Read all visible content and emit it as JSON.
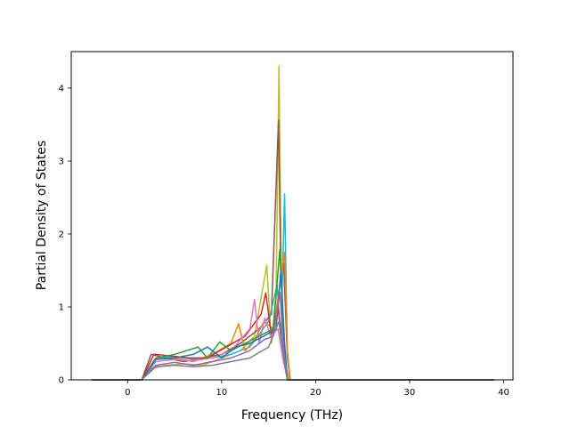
{
  "chart_data": {
    "type": "line",
    "title": "",
    "xlabel": "Frequency (THz)",
    "ylabel": "Partial Density of States",
    "xlim": [
      -6,
      41
    ],
    "ylim": [
      0,
      4.5
    ],
    "xticks": [
      0,
      10,
      20,
      30,
      40
    ],
    "yticks": [
      0,
      1,
      2,
      3,
      4
    ],
    "xtick_labels": [
      "0",
      "10",
      "20",
      "30",
      "40"
    ],
    "ytick_labels": [
      "0",
      "1",
      "2",
      "3",
      "4"
    ],
    "grid": false,
    "legend": "none",
    "series": [
      {
        "color": "#bcbd22",
        "values": [
          [
            -3.8,
            0
          ],
          [
            1.5,
            0
          ],
          [
            2.5,
            0.15
          ],
          [
            4,
            0.2
          ],
          [
            6,
            0.22
          ],
          [
            8,
            0.2
          ],
          [
            10,
            0.3
          ],
          [
            12,
            0.4
          ],
          [
            13.5,
            0.6
          ],
          [
            14.8,
            1.57
          ],
          [
            15.3,
            0.5
          ],
          [
            15.8,
            1.2
          ],
          [
            16.1,
            4.3
          ],
          [
            16.4,
            0.9
          ],
          [
            16.8,
            0.2
          ],
          [
            17.2,
            0
          ],
          [
            39,
            0
          ]
        ]
      },
      {
        "color": "#8c564b",
        "values": [
          [
            -3.8,
            0
          ],
          [
            1.5,
            0
          ],
          [
            2.5,
            0.35
          ],
          [
            4,
            0.3
          ],
          [
            6,
            0.25
          ],
          [
            8,
            0.3
          ],
          [
            10,
            0.35
          ],
          [
            12,
            0.5
          ],
          [
            14,
            0.7
          ],
          [
            15.3,
            0.9
          ],
          [
            16.05,
            3.56
          ],
          [
            16.3,
            1.4
          ],
          [
            16.6,
            1.6
          ],
          [
            17,
            0.3
          ],
          [
            17.3,
            0
          ],
          [
            39,
            0
          ]
        ]
      },
      {
        "color": "#17becf",
        "values": [
          [
            -3.8,
            0
          ],
          [
            1.5,
            0
          ],
          [
            3,
            0.3
          ],
          [
            5,
            0.32
          ],
          [
            7,
            0.28
          ],
          [
            9,
            0.3
          ],
          [
            11,
            0.35
          ],
          [
            13,
            0.45
          ],
          [
            15,
            0.8
          ],
          [
            15.9,
            1.3
          ],
          [
            16.3,
            0.5
          ],
          [
            16.7,
            2.55
          ],
          [
            17,
            0.3
          ],
          [
            17.3,
            0
          ],
          [
            39,
            0
          ]
        ]
      },
      {
        "color": "#ff7f0e",
        "values": [
          [
            -3.8,
            0
          ],
          [
            1.5,
            0
          ],
          [
            3,
            0.28
          ],
          [
            5,
            0.3
          ],
          [
            7,
            0.25
          ],
          [
            9,
            0.35
          ],
          [
            11,
            0.5
          ],
          [
            11.8,
            0.77
          ],
          [
            12.5,
            0.4
          ],
          [
            13.5,
            0.55
          ],
          [
            14.5,
            0.8
          ],
          [
            15.5,
            0.7
          ],
          [
            16.2,
            1.3
          ],
          [
            16.7,
            1.75
          ],
          [
            17,
            0.4
          ],
          [
            17.3,
            0
          ],
          [
            39,
            0
          ]
        ]
      },
      {
        "color": "#d62728",
        "values": [
          [
            -3.8,
            0
          ],
          [
            1.5,
            0
          ],
          [
            2.8,
            0.35
          ],
          [
            4.5,
            0.33
          ],
          [
            6.5,
            0.3
          ],
          [
            8.5,
            0.3
          ],
          [
            10.5,
            0.45
          ],
          [
            12.5,
            0.6
          ],
          [
            14.2,
            0.9
          ],
          [
            14.7,
            1.19
          ],
          [
            15.3,
            0.6
          ],
          [
            16,
            1.0
          ],
          [
            16.5,
            0.4
          ],
          [
            17,
            0
          ],
          [
            39,
            0
          ]
        ]
      },
      {
        "color": "#e377c2",
        "values": [
          [
            -3.8,
            0
          ],
          [
            1.5,
            0
          ],
          [
            3,
            0.25
          ],
          [
            5,
            0.28
          ],
          [
            7,
            0.26
          ],
          [
            9,
            0.3
          ],
          [
            11,
            0.4
          ],
          [
            13,
            0.7
          ],
          [
            13.5,
            1.1
          ],
          [
            14,
            0.5
          ],
          [
            14.6,
            0.85
          ],
          [
            15.2,
            0.6
          ],
          [
            16,
            0.7
          ],
          [
            16.5,
            0.3
          ],
          [
            17,
            0
          ],
          [
            39,
            0
          ]
        ]
      },
      {
        "color": "#2ca02c",
        "values": [
          [
            -3.8,
            0
          ],
          [
            1.5,
            0
          ],
          [
            3,
            0.3
          ],
          [
            5,
            0.35
          ],
          [
            7.5,
            0.45
          ],
          [
            8.5,
            0.3
          ],
          [
            9.8,
            0.52
          ],
          [
            11,
            0.4
          ],
          [
            12.5,
            0.5
          ],
          [
            14,
            0.6
          ],
          [
            15.5,
            0.7
          ],
          [
            16.2,
            1.8
          ],
          [
            16.6,
            0.5
          ],
          [
            17,
            0
          ],
          [
            39,
            0
          ]
        ]
      },
      {
        "color": "#1f77b4",
        "values": [
          [
            -3.8,
            0
          ],
          [
            1.5,
            0
          ],
          [
            3,
            0.28
          ],
          [
            5,
            0.3
          ],
          [
            7,
            0.35
          ],
          [
            8.5,
            0.45
          ],
          [
            10,
            0.3
          ],
          [
            11.5,
            0.45
          ],
          [
            13,
            0.5
          ],
          [
            14.5,
            0.6
          ],
          [
            15.8,
            0.7
          ],
          [
            16.3,
            1.5
          ],
          [
            16.7,
            0.5
          ],
          [
            17,
            0
          ],
          [
            39,
            0
          ]
        ]
      },
      {
        "color": "#9467bd",
        "values": [
          [
            -3.8,
            0
          ],
          [
            1.5,
            0
          ],
          [
            3,
            0.2
          ],
          [
            5,
            0.24
          ],
          [
            7,
            0.2
          ],
          [
            9,
            0.25
          ],
          [
            11,
            0.3
          ],
          [
            13,
            0.4
          ],
          [
            14.5,
            0.55
          ],
          [
            15.5,
            0.6
          ],
          [
            16.2,
            1.2
          ],
          [
            16.6,
            0.4
          ],
          [
            17,
            0
          ],
          [
            39,
            0
          ]
        ]
      },
      {
        "color": "#7f7f7f",
        "values": [
          [
            -3.8,
            0
          ],
          [
            1.5,
            0
          ],
          [
            3,
            0.18
          ],
          [
            5,
            0.2
          ],
          [
            7,
            0.18
          ],
          [
            9,
            0.2
          ],
          [
            11,
            0.25
          ],
          [
            13,
            0.3
          ],
          [
            15,
            0.45
          ],
          [
            16.1,
            0.8
          ],
          [
            16.6,
            0.3
          ],
          [
            17,
            0
          ],
          [
            39,
            0
          ]
        ]
      }
    ]
  }
}
